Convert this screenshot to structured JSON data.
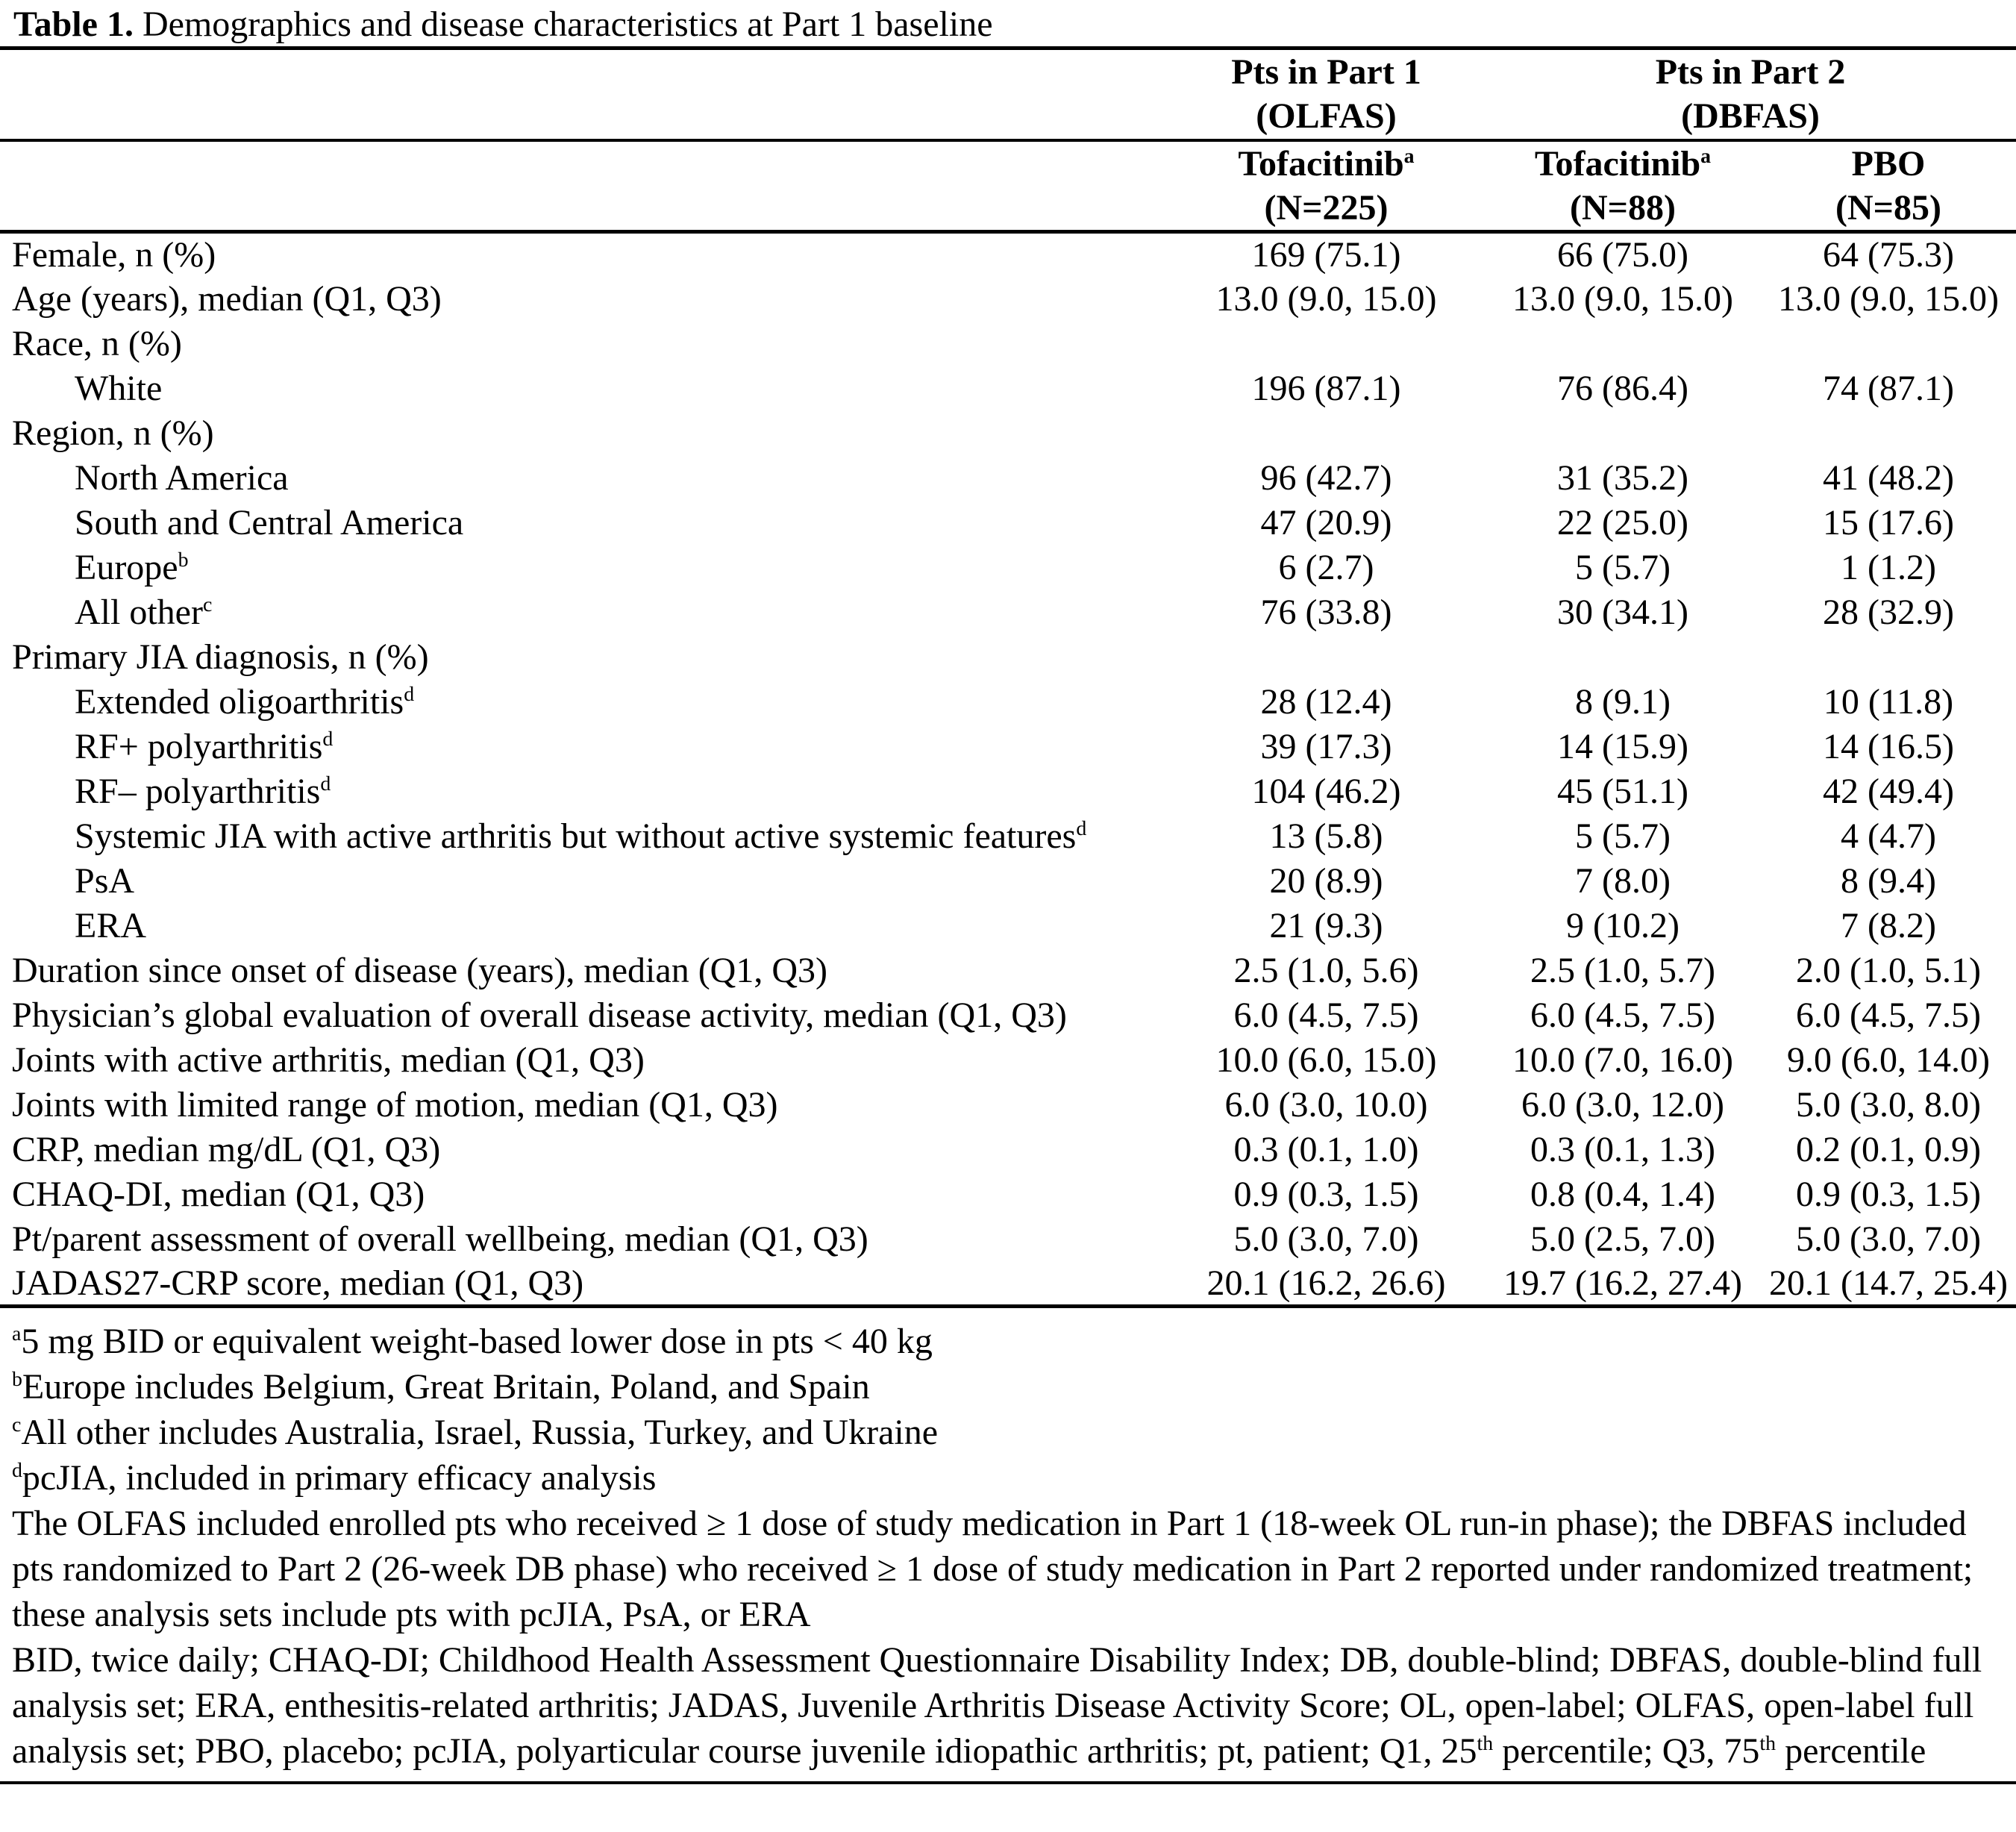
{
  "title": {
    "bold": "Table 1.",
    "text": " Demographics and disease characteristics at Part 1 baseline"
  },
  "header": {
    "group1": [
      {
        "line1": "Pts in Part 1",
        "line2": "(OLFAS)"
      },
      {
        "line1": "Pts in Part 2",
        "line2": "(DBFAS)"
      }
    ],
    "columns": [
      {
        "name": "Tofacitinib",
        "sup": "a",
        "n": "(N=225)"
      },
      {
        "name": "Tofacitinib",
        "sup": "a",
        "n": "(N=88)"
      },
      {
        "name": "PBO",
        "sup": "",
        "n": "(N=85)"
      }
    ]
  },
  "rows": [
    {
      "label": "Female, n (%)",
      "sup": "",
      "indent": false,
      "values": [
        "169 (75.1)",
        "66 (75.0)",
        "64 (75.3)"
      ]
    },
    {
      "label": "Age (years), median (Q1, Q3)",
      "sup": "",
      "indent": false,
      "values": [
        "13.0 (9.0, 15.0)",
        "13.0 (9.0, 15.0)",
        "13.0 (9.0, 15.0)"
      ]
    },
    {
      "label": "Race, n (%)",
      "sup": "",
      "indent": false,
      "values": [
        "",
        "",
        ""
      ]
    },
    {
      "label": "White",
      "sup": "",
      "indent": true,
      "values": [
        "196 (87.1)",
        "76 (86.4)",
        "74 (87.1)"
      ]
    },
    {
      "label": "Region, n (%)",
      "sup": "",
      "indent": false,
      "values": [
        "",
        "",
        ""
      ]
    },
    {
      "label": "North America",
      "sup": "",
      "indent": true,
      "values": [
        "96 (42.7)",
        "31 (35.2)",
        "41 (48.2)"
      ]
    },
    {
      "label": "South and Central America",
      "sup": "",
      "indent": true,
      "values": [
        "47 (20.9)",
        "22 (25.0)",
        "15 (17.6)"
      ]
    },
    {
      "label": "Europe",
      "sup": "b",
      "indent": true,
      "values": [
        "6 (2.7)",
        "5 (5.7)",
        "1 (1.2)"
      ]
    },
    {
      "label": "All other",
      "sup": "c",
      "indent": true,
      "values": [
        "76 (33.8)",
        "30 (34.1)",
        "28 (32.9)"
      ]
    },
    {
      "label": "Primary JIA diagnosis, n (%)",
      "sup": "",
      "indent": false,
      "values": [
        "",
        "",
        ""
      ]
    },
    {
      "label": "Extended oligoarthritis",
      "sup": "d",
      "indent": true,
      "values": [
        "28 (12.4)",
        "8 (9.1)",
        "10 (11.8)"
      ]
    },
    {
      "label": "RF+ polyarthritis",
      "sup": "d",
      "indent": true,
      "values": [
        "39 (17.3)",
        "14 (15.9)",
        "14 (16.5)"
      ]
    },
    {
      "label": "RF– polyarthritis",
      "sup": "d",
      "indent": true,
      "values": [
        "104 (46.2)",
        "45 (51.1)",
        "42 (49.4)"
      ]
    },
    {
      "label": "Systemic JIA with active arthritis but without active systemic features",
      "sup": "d",
      "indent": true,
      "values": [
        "13 (5.8)",
        "5 (5.7)",
        "4 (4.7)"
      ]
    },
    {
      "label": "PsA",
      "sup": "",
      "indent": true,
      "values": [
        "20 (8.9)",
        "7 (8.0)",
        "8 (9.4)"
      ]
    },
    {
      "label": "ERA",
      "sup": "",
      "indent": true,
      "values": [
        "21 (9.3)",
        "9 (10.2)",
        "7 (8.2)"
      ]
    },
    {
      "label": "Duration since onset of disease (years), median (Q1, Q3)",
      "sup": "",
      "indent": false,
      "values": [
        "2.5 (1.0, 5.6)",
        "2.5 (1.0, 5.7)",
        "2.0 (1.0, 5.1)"
      ]
    },
    {
      "label": "Physician’s global evaluation of overall disease activity, median (Q1, Q3)",
      "sup": "",
      "indent": false,
      "values": [
        "6.0 (4.5, 7.5)",
        "6.0 (4.5, 7.5)",
        "6.0 (4.5, 7.5)"
      ]
    },
    {
      "label": "Joints with active arthritis, median (Q1, Q3)",
      "sup": "",
      "indent": false,
      "values": [
        "10.0 (6.0, 15.0)",
        "10.0 (7.0, 16.0)",
        "9.0 (6.0, 14.0)"
      ]
    },
    {
      "label": "Joints with limited range of motion, median (Q1, Q3)",
      "sup": "",
      "indent": false,
      "values": [
        "6.0 (3.0, 10.0)",
        "6.0 (3.0, 12.0)",
        "5.0 (3.0, 8.0)"
      ]
    },
    {
      "label": "CRP, median mg/dL (Q1, Q3)",
      "sup": "",
      "indent": false,
      "values": [
        "0.3 (0.1, 1.0)",
        "0.3 (0.1, 1.3)",
        "0.2 (0.1, 0.9)"
      ]
    },
    {
      "label": "CHAQ-DI, median (Q1, Q3)",
      "sup": "",
      "indent": false,
      "values": [
        "0.9 (0.3, 1.5)",
        "0.8 (0.4, 1.4)",
        "0.9 (0.3, 1.5)"
      ]
    },
    {
      "label": "Pt/parent assessment of overall wellbeing, median (Q1, Q3)",
      "sup": "",
      "indent": false,
      "values": [
        "5.0 (3.0, 7.0)",
        "5.0 (2.5, 7.0)",
        "5.0 (3.0, 7.0)"
      ]
    },
    {
      "label": "JADAS27-CRP score, median (Q1, Q3)",
      "sup": "",
      "indent": false,
      "values": [
        "20.1 (16.2, 26.6)",
        "19.7 (16.2, 27.4)",
        "20.1 (14.7, 25.4)"
      ]
    }
  ],
  "footnotes": [
    {
      "sup": "a",
      "text": "5 mg BID or equivalent weight-based lower dose in pts < 40 kg"
    },
    {
      "sup": "b",
      "text": "Europe includes Belgium, Great Britain, Poland, and Spain"
    },
    {
      "sup": "c",
      "text": "All other includes Australia, Israel, Russia, Turkey, and Ukraine"
    },
    {
      "sup": "d",
      "text": "pcJIA, included in primary efficacy analysis"
    }
  ],
  "paragraphs": [
    {
      "segments": [
        {
          "text": "The OLFAS included enrolled pts who received ≥ 1 dose of study medication in Part 1 (18-week OL run-in phase); the DBFAS included pts randomized to Part 2 (26-week DB phase) who received ≥ 1 dose of study medication in Part 2 reported under randomized treatment; these analysis sets include pts with pcJIA, PsA, or ERA",
          "sup": false
        }
      ]
    },
    {
      "segments": [
        {
          "text": "BID, twice daily; CHAQ-DI; Childhood Health Assessment Questionnaire Disability Index; DB, double-blind; DBFAS, double-blind full analysis set; ERA, enthesitis-related arthritis; JADAS, Juvenile Arthritis Disease Activity Score; OL, open-label; OLFAS, open-label full analysis set; PBO, placebo; pcJIA, polyarticular course juvenile idiopathic arthritis; pt, patient; Q1, 25",
          "sup": false
        },
        {
          "text": "th",
          "sup": true
        },
        {
          "text": " percentile; Q3, 75",
          "sup": false
        },
        {
          "text": "th",
          "sup": true
        },
        {
          "text": " percentile",
          "sup": false
        }
      ]
    }
  ]
}
